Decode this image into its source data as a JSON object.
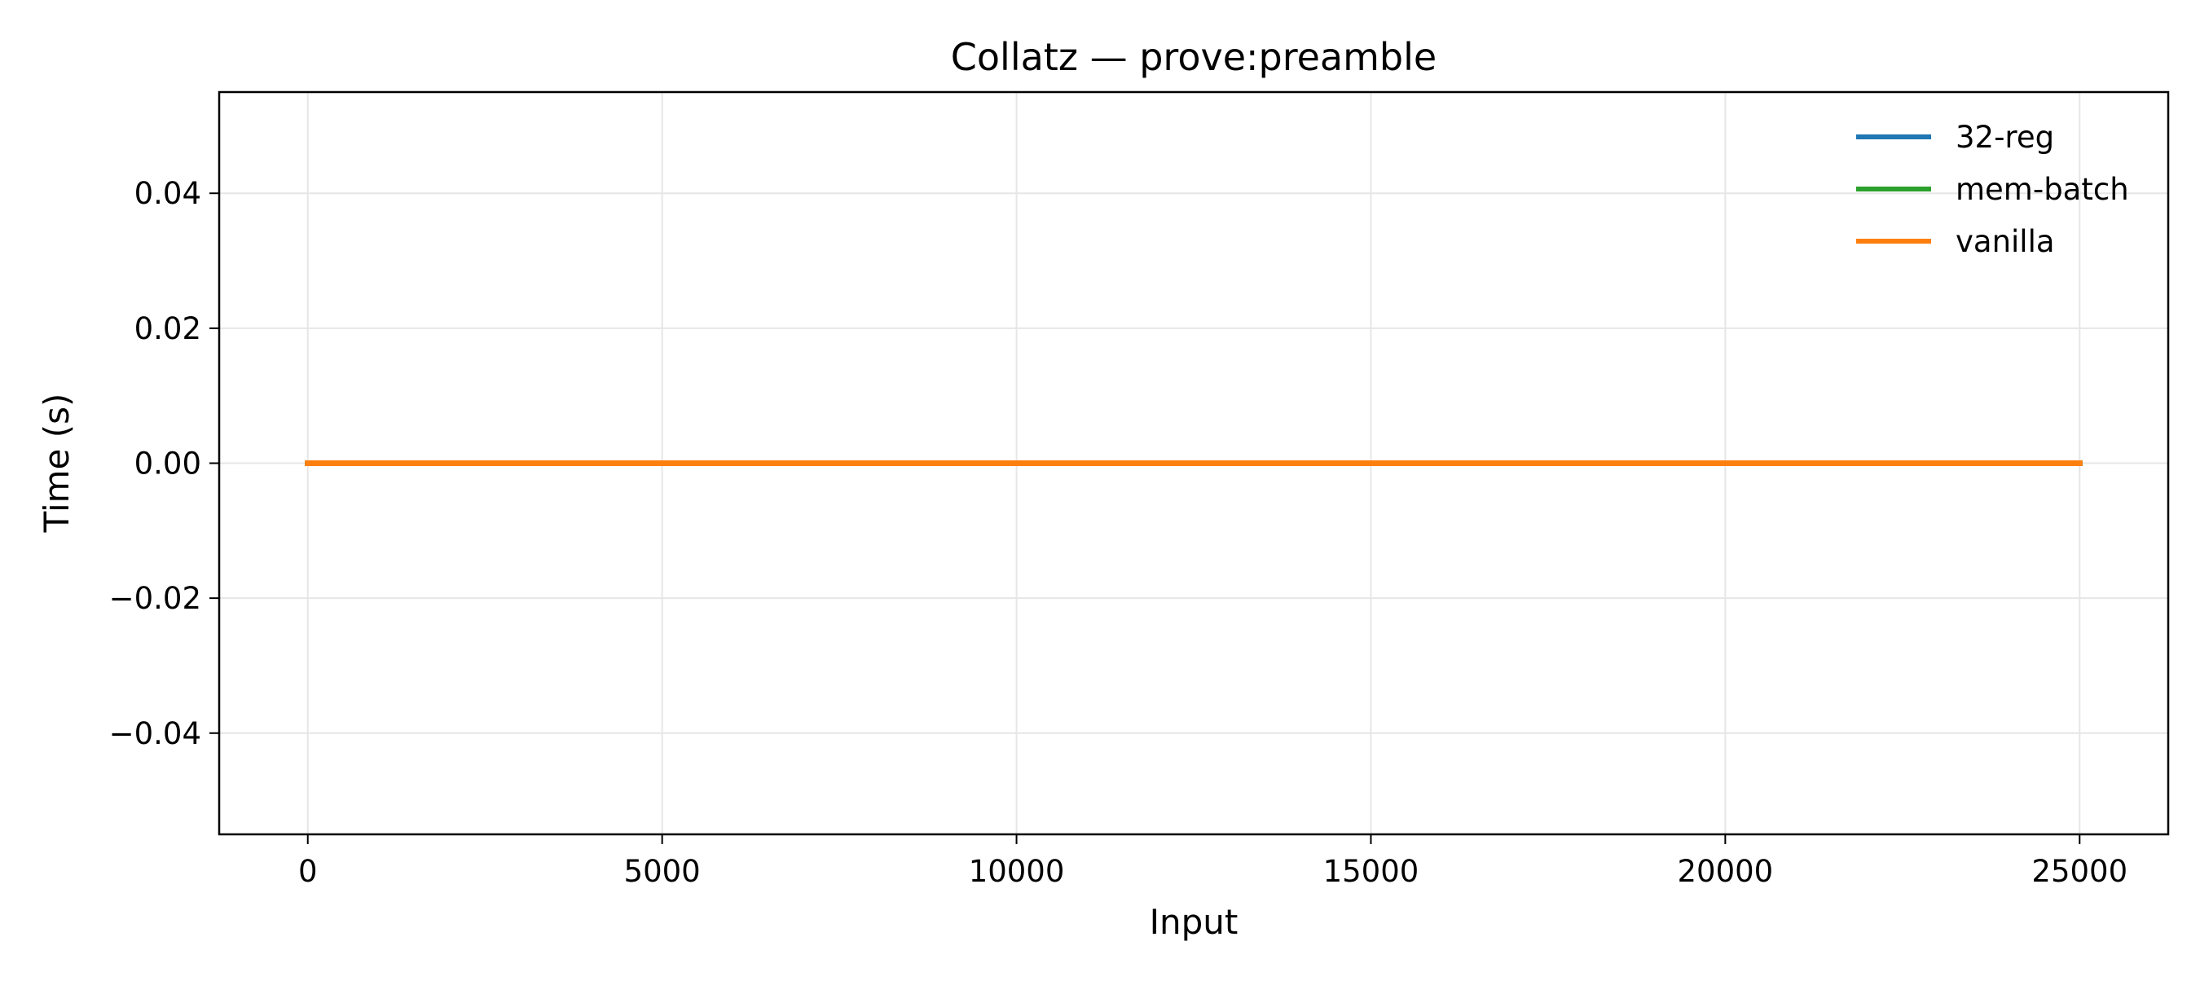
{
  "chart_data": {
    "type": "line",
    "title": "Collatz — prove:preamble",
    "xlabel": "Input",
    "ylabel": "Time (s)",
    "xlim": [
      -1250,
      26250
    ],
    "ylim": [
      -0.055,
      0.055
    ],
    "xticks": [
      0,
      5000,
      10000,
      15000,
      20000,
      25000
    ],
    "xtick_labels": [
      "0",
      "5000",
      "10000",
      "15000",
      "20000",
      "25000"
    ],
    "yticks": [
      0.04,
      0.02,
      0.0,
      -0.02,
      -0.04
    ],
    "ytick_labels": [
      "0.04",
      "0.02",
      "0.00",
      "−0.02",
      "−0.04"
    ],
    "grid": true,
    "legend_position": "top-right",
    "series": [
      {
        "name": "32-reg",
        "color": "#1f77b4",
        "x": [
          0,
          25000
        ],
        "y": [
          0.0,
          0.0
        ]
      },
      {
        "name": "mem-batch",
        "color": "#2ca02c",
        "x": [
          0,
          25000
        ],
        "y": [
          0.0,
          0.0
        ]
      },
      {
        "name": "vanilla",
        "color": "#ff7f0e",
        "x": [
          0,
          25000
        ],
        "y": [
          0.0,
          0.0
        ]
      }
    ]
  }
}
